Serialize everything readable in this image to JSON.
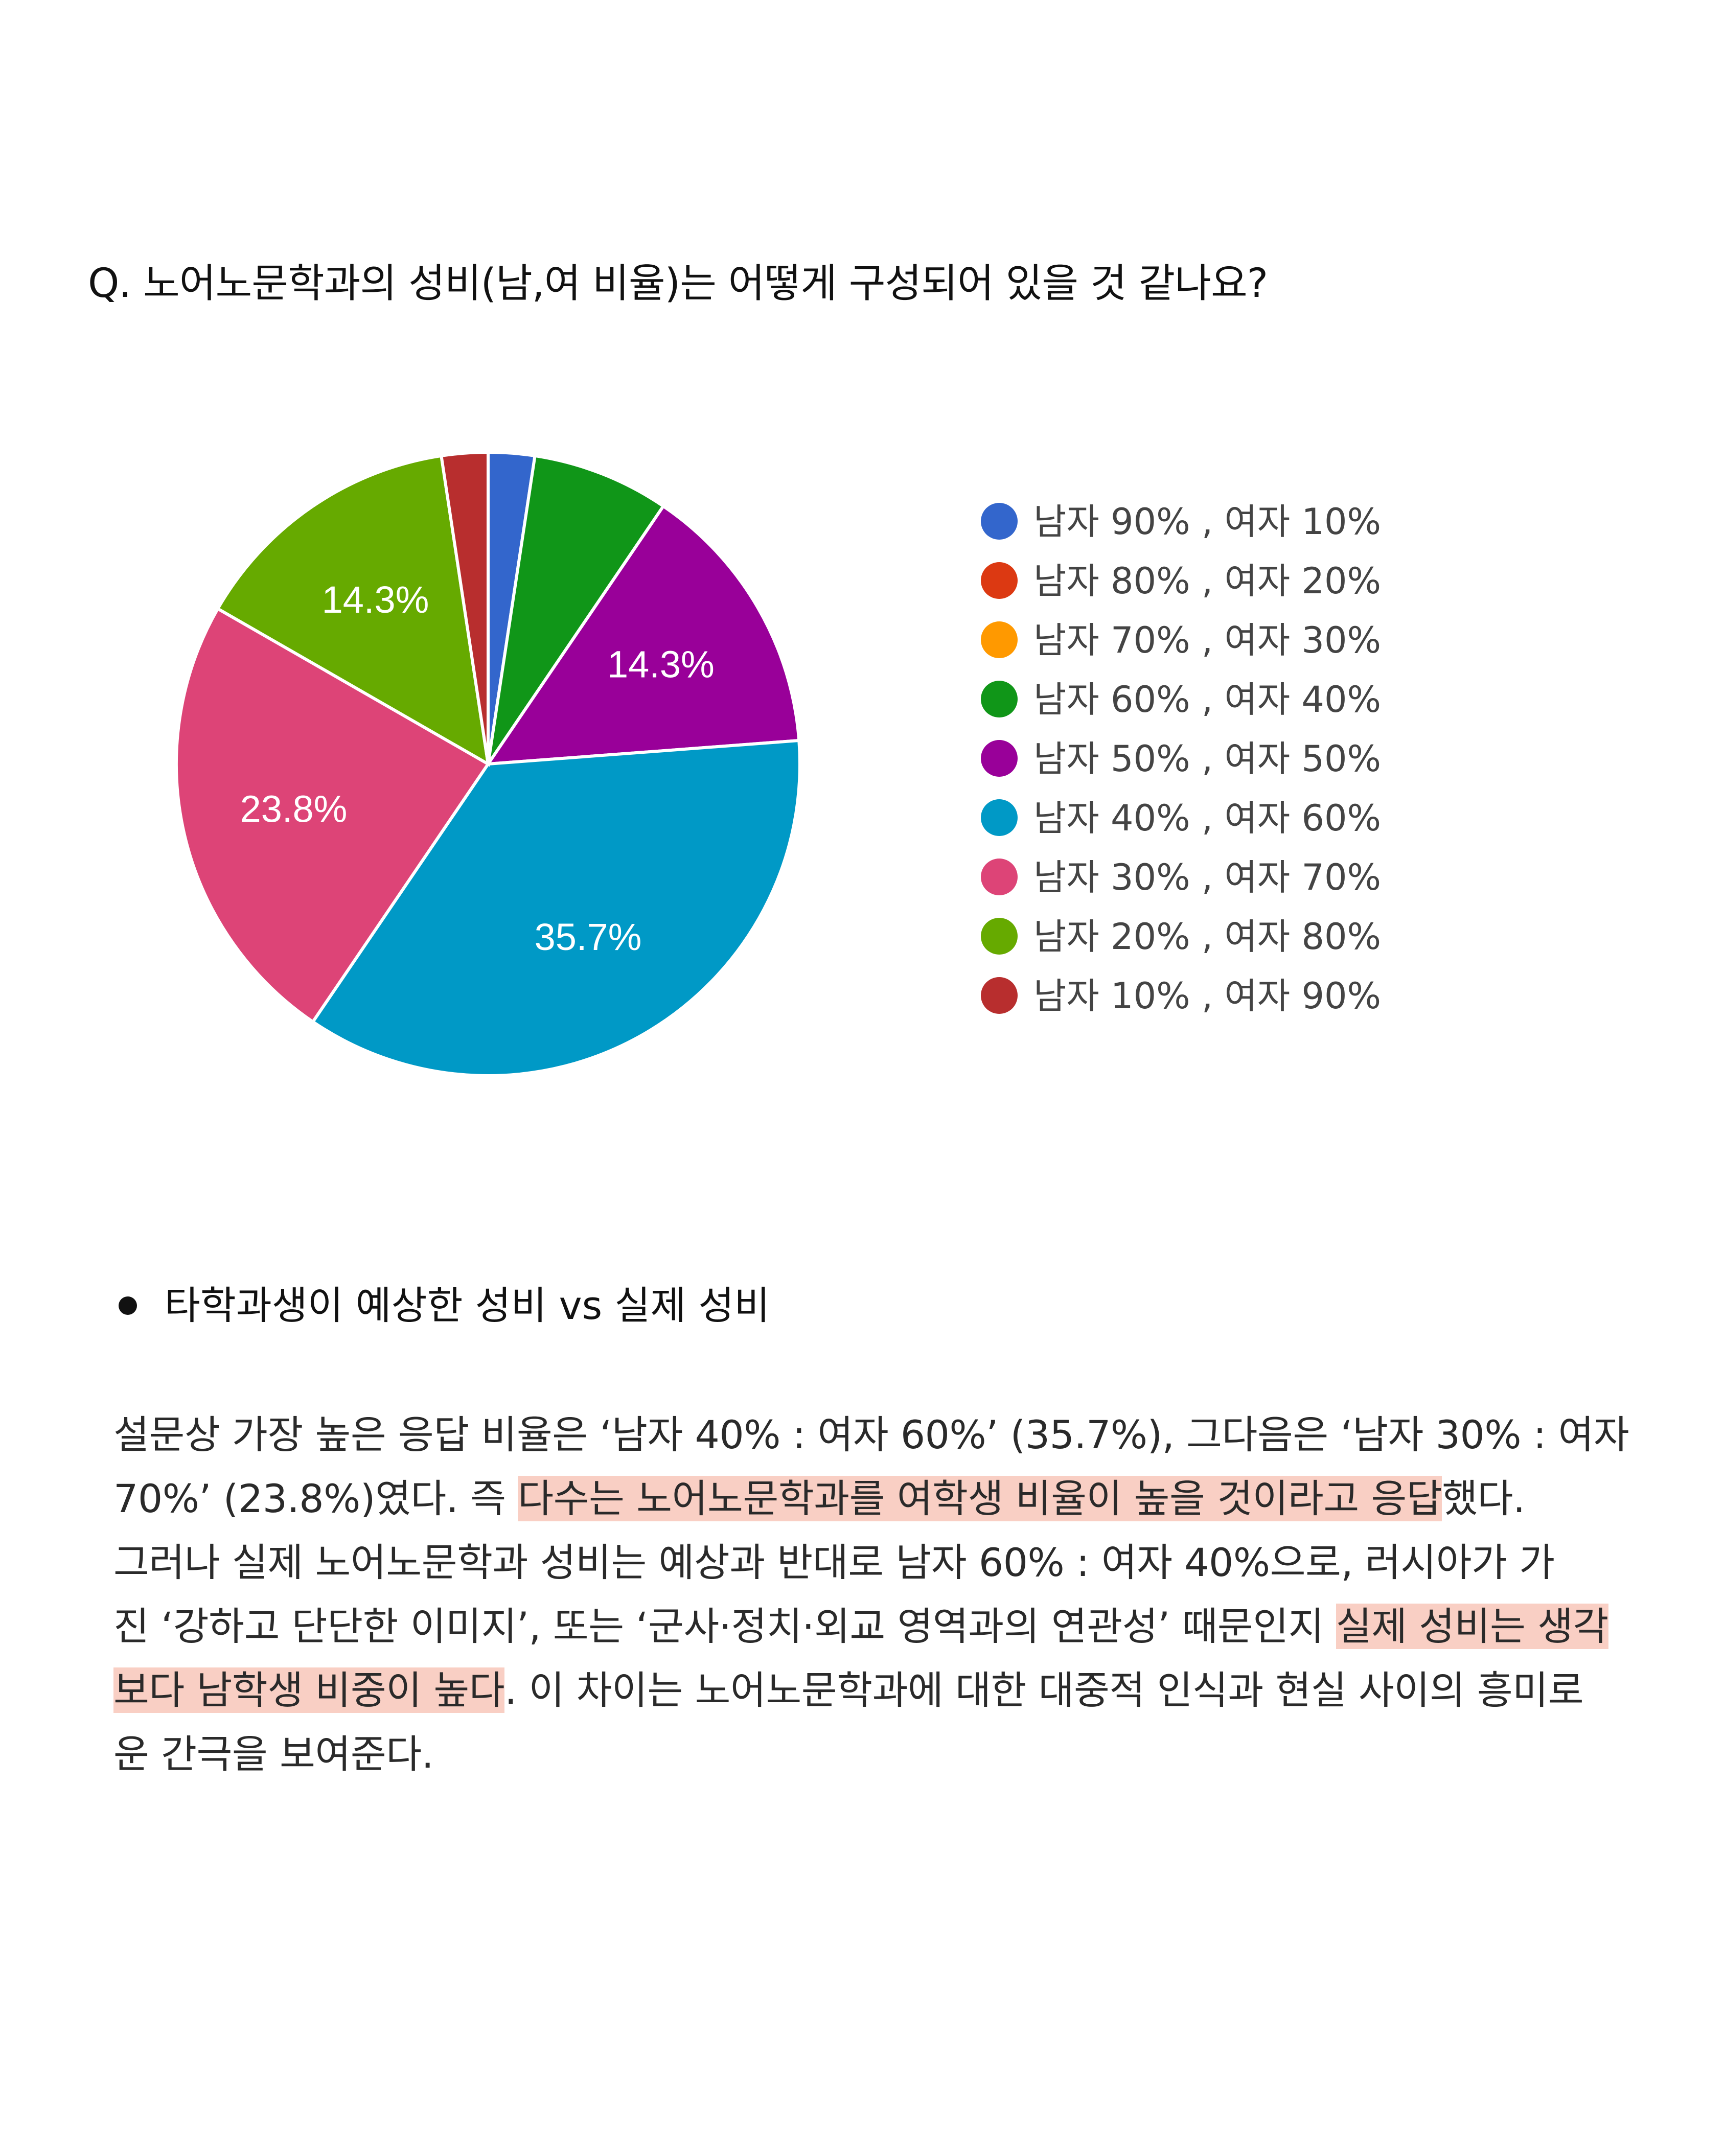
{
  "question": "Q. 노어노문학과의 성비(남,여 비율)는 어떻게 구성되어 있을 것 같나요?",
  "chart_data": {
    "type": "pie",
    "categories": [
      "남자 90% , 여자 10%",
      "남자 80% , 여자 20%",
      "남자 70% , 여자 30%",
      "남자 60% , 여자 40%",
      "남자 50% , 여자 50%",
      "남자 40% , 여자 60%",
      "남자 30% , 여자 70%",
      "남자 20% , 여자 80%",
      "남자 10% , 여자 90%"
    ],
    "values": [
      2.4,
      0,
      0,
      7.1,
      14.3,
      35.7,
      23.8,
      14.3,
      2.4
    ],
    "data_labels": [
      "",
      "",
      "",
      "",
      "14.3%",
      "35.7%",
      "23.8%",
      "14.3%",
      ""
    ],
    "colors": [
      "#3366cc",
      "#dc3912",
      "#ff9900",
      "#109618",
      "#990099",
      "#0099c6",
      "#dd4477",
      "#66aa00",
      "#b82e2e"
    ],
    "legend_position": "right",
    "start_angle_deg": 90,
    "direction": "clockwise"
  },
  "section_heading": "타학과생이 예상한 성비 vs 실제 성비",
  "body": {
    "line1": " 설문상 가장 높은 응답 비율은 ‘남자 40% : 여자 60%’ (35.7%), 그다음은 ‘남자 30% : 여자",
    "line2_a": "70%’ (23.8%)였다. 즉 ",
    "line2_hl": "다수는 노어노문학과를 여학생 비율이 높을 것이라고 응답",
    "line2_b": "했다.",
    "line3": " 그러나 실제 노어노문학과 성비는 예상과 반대로 남자 60% : 여자 40%으로, 러시아가 가",
    "line4_a": "진  ‘강하고 단단한 이미지’, 또는 ‘군사·정치·외교 영역과의 연관성’ 때문인지 ",
    "line4_hl": "실제 성비는 생각",
    "line5_hl": "보다 남학생 비중이 높다",
    "line5_b": ". 이 차이는 노어노문학과에 대한 대중적 인식과 현실 사이의 흥미로",
    "line6": "운 간극을 보여준다."
  }
}
